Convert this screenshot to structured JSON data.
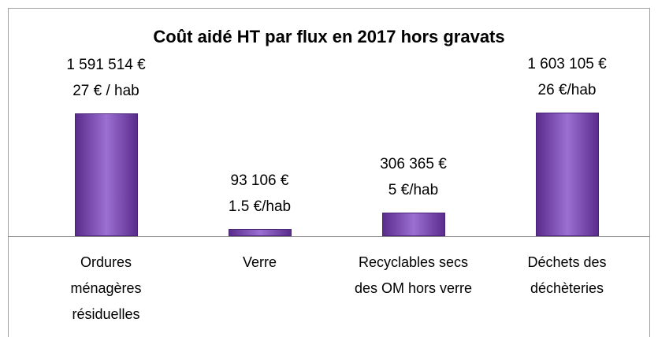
{
  "chart_data": {
    "type": "bar",
    "title": "Coût aidé HT par flux en 2017 hors gravats",
    "categories": [
      "Ordures ménagères résiduelles",
      "Verre",
      "Recyclables secs des OM hors verre",
      "Déchets des déchèteries"
    ],
    "values": [
      1591514,
      93106,
      306365,
      1603105
    ],
    "value_labels": [
      "1 591 514 €",
      "93 106 €",
      "306 365 €",
      "1 603 105 €"
    ],
    "per_capita_labels": [
      "27 € / hab",
      "1.5 €/hab",
      "5 €/hab",
      "26 €/hab"
    ],
    "color": "#7b4fb0"
  }
}
